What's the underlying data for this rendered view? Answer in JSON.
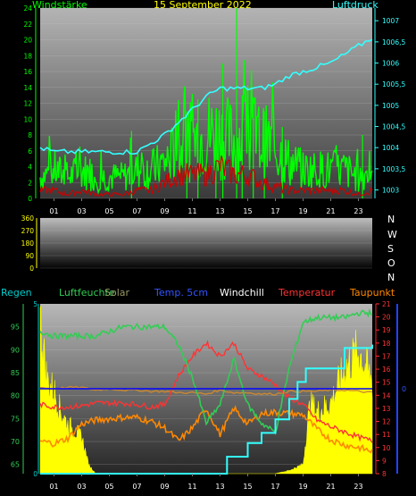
{
  "colors": {
    "wind": "#00ff00",
    "pressure": "#33ffff",
    "gust": "#cc0000",
    "humidity": "#33cc55",
    "solar": "#ffff00",
    "soiltemp": "#0000ff",
    "windchill": "#ff8800",
    "temperature": "#ff3333",
    "dewpoint": "#ff8800",
    "rain": "#00aaaa",
    "axis_cyan": "#00cccc",
    "axis_red": "#ff2222",
    "axis_blue": "#2244ff"
  },
  "header": {
    "left": "Windstärke",
    "center": "15 September 2022",
    "right": "Luftdruck"
  },
  "compass": [
    "N",
    "W",
    "S",
    "O",
    "N"
  ],
  "legend": {
    "regen": "Regen",
    "luftfeuchte": "Luftfeuchte",
    "solar": "Solar",
    "temp5cm": "Temp. 5cm",
    "windchill": "Windchill",
    "temperatur": "Temperatur",
    "taupunkt": "Taupunkt"
  },
  "chart_data": [
    {
      "type": "line",
      "title": "15 September 2022",
      "x_ticks": [
        "01",
        "03",
        "05",
        "07",
        "09",
        "11",
        "13",
        "15",
        "17",
        "19",
        "21",
        "23"
      ],
      "left_axis": {
        "label": "Windstärke",
        "ticks": [
          0,
          2,
          4,
          6,
          8,
          10,
          12,
          14,
          16,
          18,
          20,
          22,
          24
        ],
        "ylim": [
          0,
          24
        ]
      },
      "right_axis": {
        "label": "Luftdruck",
        "ticks": [
          "1003",
          "1003,5",
          "1004",
          "1004,5",
          "1005",
          "1005,5",
          "1006",
          "1006,5",
          "1007"
        ],
        "ylim": [
          1002.8,
          1007.3
        ]
      },
      "series": [
        {
          "name": "Windstärke",
          "axis": "left",
          "x": [
            0,
            1,
            2,
            3,
            4,
            5,
            6,
            7,
            8,
            9,
            10,
            11,
            12,
            13,
            14,
            15,
            16,
            17,
            18,
            19,
            20,
            21,
            22,
            23,
            24
          ],
          "values": [
            3,
            4,
            3,
            4,
            3,
            3,
            3,
            4,
            4,
            5,
            7,
            8,
            9,
            9,
            8,
            9,
            8,
            7,
            5,
            4,
            4,
            4,
            4,
            3,
            4
          ]
        },
        {
          "name": "Böen",
          "axis": "left",
          "x": [
            0,
            1,
            2,
            3,
            4,
            5,
            6,
            7,
            8,
            9,
            10,
            11,
            12,
            13,
            14,
            15,
            16,
            17,
            18,
            19,
            20,
            21,
            22,
            23,
            24
          ],
          "values": [
            1,
            1,
            0.5,
            1,
            0.5,
            0.5,
            0.5,
            1,
            1,
            2,
            3,
            3,
            3,
            4,
            3,
            3,
            2,
            1.5,
            1,
            1,
            1,
            1,
            1,
            0.5,
            1
          ]
        },
        {
          "name": "Luftdruck",
          "axis": "right",
          "x": [
            0,
            1,
            2,
            3,
            4,
            5,
            6,
            7,
            8,
            9,
            10,
            11,
            12,
            13,
            14,
            15,
            16,
            17,
            18,
            19,
            20,
            21,
            22,
            23,
            24
          ],
          "values": [
            1004,
            1003.9,
            1003.9,
            1003.9,
            1003.9,
            1003.9,
            1003.9,
            1003.9,
            1004.1,
            1004.3,
            1004.6,
            1004.9,
            1005.2,
            1005.4,
            1005.4,
            1005.4,
            1005.4,
            1005.5,
            1005.7,
            1005.8,
            1005.9,
            1006,
            1006.2,
            1006.4,
            1006.6
          ]
        }
      ]
    },
    {
      "type": "scatter",
      "left_axis": {
        "ticks": [
          0,
          90,
          180,
          270,
          360
        ],
        "ylim": [
          0,
          360
        ]
      },
      "series": []
    },
    {
      "type": "line",
      "x_ticks": [
        "01",
        "03",
        "05",
        "07",
        "09",
        "11",
        "13",
        "15",
        "17",
        "19",
        "21",
        "23"
      ],
      "left_axis": {
        "label": "Luftfeuchte",
        "ticks": [
          65,
          70,
          75,
          80,
          85,
          90,
          95
        ],
        "ylim": [
          63,
          100
        ]
      },
      "right_axis": {
        "label": "Temperatur",
        "ticks": [
          8,
          9,
          10,
          11,
          12,
          13,
          14,
          15,
          16,
          17,
          18,
          19,
          20,
          21
        ],
        "ylim": [
          8,
          21
        ]
      },
      "rain_axis": {
        "label": "Regen",
        "ticks": [
          0,
          5
        ],
        "ylim": [
          0,
          5
        ]
      },
      "blue_axis": {
        "label": "Temp. 5cm",
        "ticks": [
          0
        ]
      },
      "series": [
        {
          "name": "Luftfeuchte",
          "axis": "left",
          "x": [
            0,
            1,
            2,
            3,
            4,
            5,
            6,
            7,
            8,
            9,
            10,
            11,
            12,
            13,
            14,
            15,
            16,
            17,
            18,
            19,
            20,
            21,
            22,
            23,
            24
          ],
          "values": [
            94,
            93,
            93,
            93,
            93,
            94,
            95,
            95,
            95,
            95,
            91,
            84,
            74,
            78,
            88,
            78,
            74,
            72,
            86,
            96,
            97,
            97,
            97,
            98,
            98
          ]
        },
        {
          "name": "Solar",
          "axis": "rain",
          "x": [
            0,
            0.5,
            1,
            1.5,
            2,
            3,
            3.5,
            4,
            11,
            12,
            13,
            14,
            15,
            16,
            17,
            18,
            19,
            19.5,
            20,
            21,
            22,
            23,
            23.5,
            24
          ],
          "values": [
            5,
            3,
            2.7,
            2,
            1.6,
            1.2,
            0.3,
            0,
            0,
            0,
            0,
            0,
            0,
            0,
            0,
            0.1,
            0.3,
            2.3,
            2,
            2.3,
            3.4,
            4,
            3.5,
            3
          ]
        },
        {
          "name": "Temp. 5cm",
          "axis": "right",
          "x": [
            0,
            24
          ],
          "values": [
            14.5,
            14.5
          ]
        },
        {
          "name": "Windchill",
          "axis": "right",
          "x": [
            0,
            1,
            2,
            3,
            4,
            5,
            6,
            7,
            8,
            9,
            10,
            11,
            12,
            13,
            14,
            15,
            16,
            17,
            18,
            19,
            20,
            21,
            22,
            23,
            24
          ],
          "values": [
            10.5,
            10.3,
            10.7,
            11.8,
            12.1,
            12.2,
            12.3,
            12.3,
            12,
            11.5,
            10.5,
            11.5,
            13,
            11,
            13,
            11.8,
            12.6,
            12.7,
            12.6,
            12.5,
            11.4,
            10.6,
            10.2,
            10,
            9.7
          ]
        },
        {
          "name": "Temperatur",
          "axis": "right",
          "x": [
            0,
            1,
            2,
            3,
            4,
            5,
            6,
            7,
            8,
            9,
            10,
            11,
            12,
            13,
            14,
            15,
            16,
            17,
            18,
            19,
            20,
            21,
            22,
            23,
            24
          ],
          "values": [
            13.3,
            13.1,
            13.1,
            13.2,
            13.4,
            13.4,
            13.4,
            13.3,
            13.1,
            13.3,
            15.5,
            17,
            18,
            17,
            18,
            16,
            15.5,
            14.8,
            13.8,
            13.3,
            12.1,
            11.6,
            11.2,
            10.8,
            10.5
          ]
        },
        {
          "name": "Taupunkt",
          "axis": "right",
          "x": [
            0,
            1,
            2,
            3,
            4,
            5,
            6,
            7,
            8,
            9,
            10,
            11,
            12,
            13,
            14,
            15,
            16,
            17,
            18,
            19,
            20,
            21,
            22,
            23,
            24
          ],
          "values": [
            14.6,
            14.5,
            14.6,
            14.6,
            14.4,
            14.5,
            14.4,
            14.4,
            14.3,
            14.3,
            14.2,
            14.2,
            14.1,
            14.4,
            14.2,
            14.2,
            14.1,
            14.1,
            14.3,
            14.3,
            14.3,
            14.4,
            14.4,
            14.3,
            14.2
          ]
        },
        {
          "name": "Regen",
          "axis": "rain",
          "x": [
            0,
            13,
            13.5,
            14,
            15,
            16,
            17,
            18,
            18.6,
            19.2,
            22,
            24
          ],
          "values": [
            0,
            0,
            0.5,
            0.5,
            0.9,
            1.2,
            1.6,
            2.2,
            2.7,
            3.1,
            3.7,
            3.8
          ]
        }
      ]
    }
  ]
}
